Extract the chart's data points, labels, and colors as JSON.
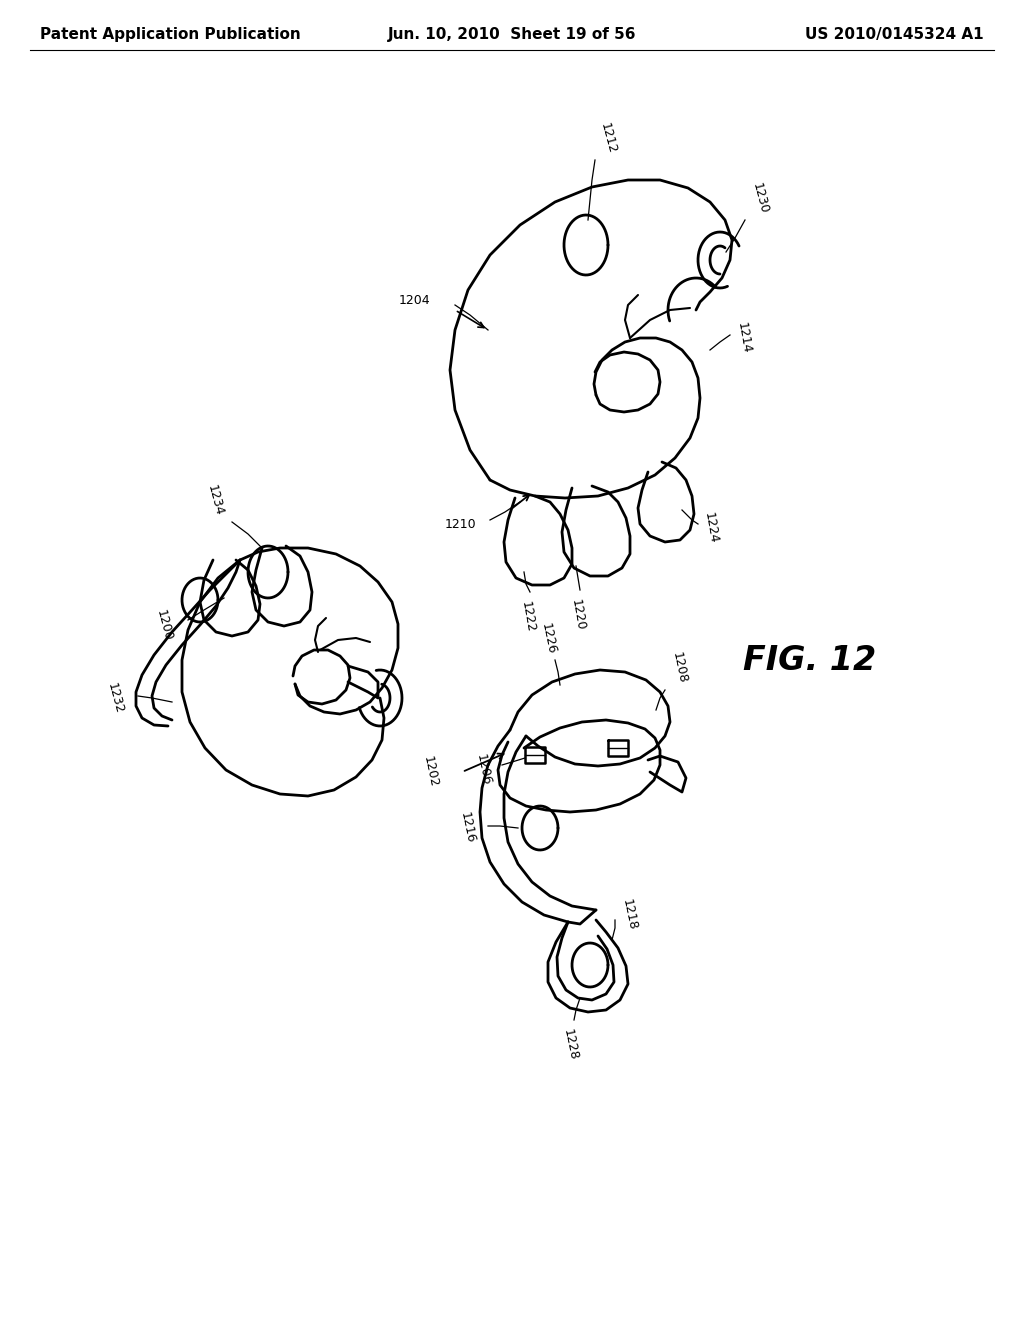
{
  "background_color": "#ffffff",
  "header_left": "Patent Application Publication",
  "header_center": "Jun. 10, 2010  Sheet 19 of 56",
  "header_right": "US 2010/0145324 A1",
  "fig_label": "FIG. 12",
  "header_fontsize": 11,
  "ref_fontsize": 9,
  "line_color": "#000000",
  "line_width": 1.5
}
